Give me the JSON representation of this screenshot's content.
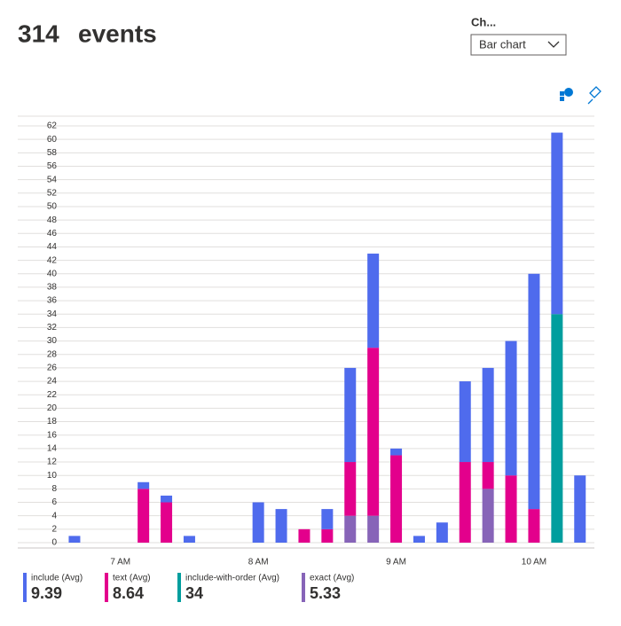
{
  "header": {
    "count": "314",
    "label": "events"
  },
  "control": {
    "label": "Ch...",
    "selected": "Bar chart"
  },
  "chart_data": {
    "type": "stacked-bar",
    "categories": [
      null,
      null,
      "7 AM",
      null,
      null,
      null,
      null,
      null,
      "8 AM",
      null,
      null,
      null,
      null,
      null,
      "9 AM",
      null,
      null,
      null,
      null,
      null,
      "10 AM",
      null,
      null
    ],
    "series": [
      {
        "name": "include (Avg)",
        "legend_value": 9.39,
        "color": "#4f6bed",
        "values": [
          1,
          null,
          null,
          1,
          1,
          1,
          null,
          null,
          6,
          5,
          null,
          3,
          14,
          14,
          1,
          1,
          3,
          12,
          14,
          20,
          35,
          27,
          10
        ]
      },
      {
        "name": "text (Avg)",
        "legend_value": 8.64,
        "color": "#e3008c",
        "values": [
          null,
          null,
          null,
          8,
          6,
          null,
          null,
          null,
          null,
          null,
          2,
          2,
          8,
          25,
          13,
          null,
          null,
          12,
          4,
          10,
          5,
          null,
          null
        ]
      },
      {
        "name": "include-with-order (Avg)",
        "legend_value": 34,
        "color": "#009e9e",
        "values": [
          null,
          null,
          null,
          null,
          null,
          null,
          null,
          null,
          null,
          null,
          null,
          null,
          null,
          null,
          null,
          null,
          null,
          null,
          null,
          null,
          null,
          34,
          null
        ]
      },
      {
        "name": "exact (Avg)",
        "legend_value": 5.33,
        "color": "#8764b8",
        "values": [
          null,
          null,
          null,
          null,
          null,
          null,
          null,
          null,
          null,
          null,
          null,
          null,
          4,
          4,
          null,
          null,
          null,
          null,
          8,
          null,
          null,
          null,
          null
        ]
      }
    ],
    "ylim": [
      0,
      62
    ],
    "yticks": [
      0,
      2,
      4,
      6,
      8,
      10,
      12,
      14,
      16,
      18,
      20,
      22,
      24,
      26,
      28,
      30,
      32,
      34,
      36,
      38,
      40,
      42,
      44,
      46,
      48,
      50,
      52,
      54,
      56,
      58,
      60,
      62
    ],
    "grid": true
  }
}
